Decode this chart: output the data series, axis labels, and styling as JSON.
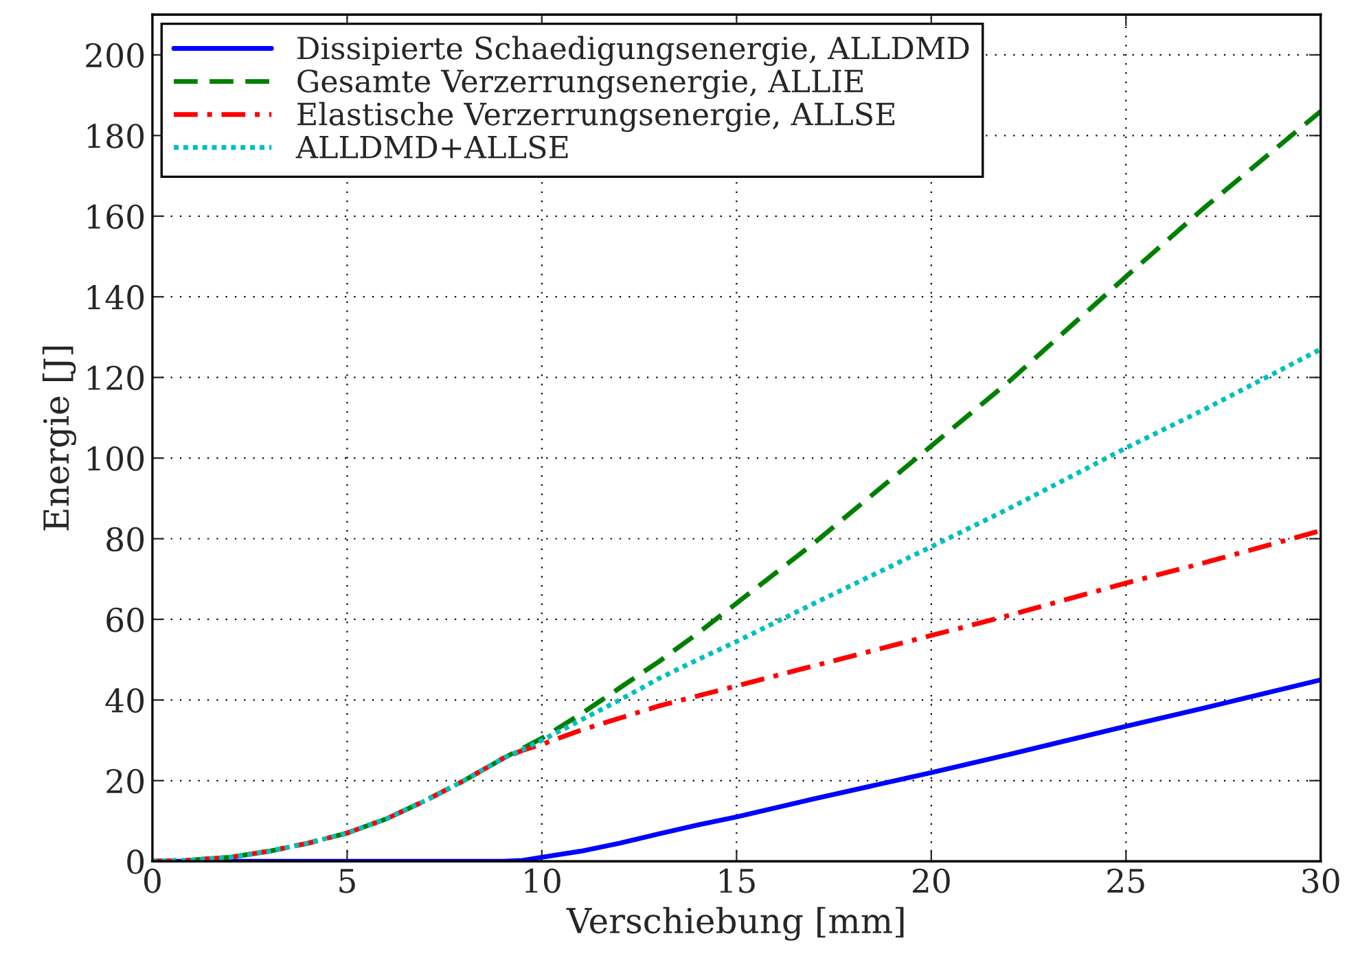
{
  "chart_data": {
    "type": "line",
    "xlabel": "Verschiebung [mm]",
    "ylabel": "Energie [J]",
    "xlim": [
      0,
      30
    ],
    "xticks": [
      0,
      5,
      10,
      15,
      20,
      25,
      30
    ],
    "ylim": [
      0,
      210
    ],
    "yticks": [
      0,
      20,
      40,
      60,
      80,
      100,
      120,
      140,
      160,
      180,
      200
    ],
    "grid": true,
    "legend": "top left",
    "x": [
      0,
      1,
      2,
      3,
      4,
      5,
      6,
      7,
      8,
      9,
      9.5,
      10,
      11,
      12,
      13,
      14,
      15,
      17,
      20,
      22,
      25,
      27,
      30
    ],
    "series": [
      {
        "name": "Dissipierte Schaedigungsenergie, ALLDMD",
        "color": "#0000ff",
        "line_style": "solid",
        "values": [
          0,
          0,
          0,
          0,
          0,
          0,
          0,
          0,
          0,
          0,
          0.2,
          1,
          2.5,
          4.5,
          6.8,
          9,
          11,
          15.5,
          22,
          26.5,
          33.5,
          38,
          45
        ]
      },
      {
        "name": "Gesamte Verzerrungsenergie, ALLIE",
        "color": "#008000",
        "line_style": "dashed",
        "values": [
          0,
          0.3,
          1,
          2.5,
          4.5,
          7,
          10.5,
          15,
          20,
          25.5,
          28,
          30.5,
          36.5,
          43,
          49.5,
          56.5,
          64,
          79,
          103,
          119,
          145,
          162,
          186
        ]
      },
      {
        "name": "Elastische Verzerrungsenergie, ALLSE",
        "color": "#ff0000",
        "line_style": "dashdot",
        "values": [
          0,
          0.3,
          1,
          2.5,
          4.5,
          7,
          10.5,
          15,
          20,
          25.5,
          27.5,
          29,
          32.5,
          35.5,
          38.5,
          41,
          43.5,
          48.5,
          56,
          61,
          69,
          74,
          82
        ]
      },
      {
        "name": "ALLDMD+ALLSE",
        "color": "#00bfbf",
        "line_style": "dotted",
        "values": [
          0,
          0.3,
          1,
          2.5,
          4.5,
          7,
          10.5,
          15,
          20,
          25.5,
          27.7,
          30,
          35,
          40,
          45.3,
          50,
          54.5,
          64,
          78,
          87.5,
          102.5,
          112,
          127
        ]
      }
    ]
  }
}
